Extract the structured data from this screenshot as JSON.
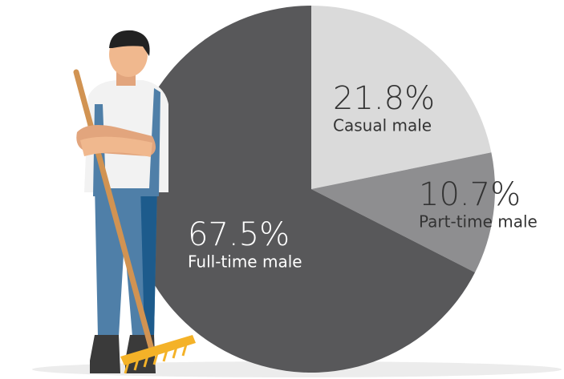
{
  "chart_data": {
    "type": "pie",
    "categories": [
      "Casual male",
      "Part-time male",
      "Full-time male"
    ],
    "values": [
      21.8,
      10.7,
      67.5
    ],
    "value_labels": [
      "21.8%",
      "10.7%",
      "67.5%"
    ],
    "colors": [
      "#dadada",
      "#8e8e90",
      "#58585a"
    ]
  }
}
